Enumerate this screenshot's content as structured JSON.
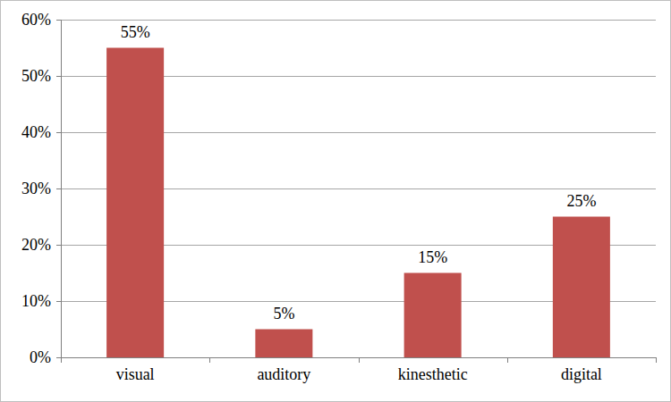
{
  "chart_data": {
    "type": "bar",
    "categories": [
      "visual",
      "auditory",
      "kinesthetic",
      "digital"
    ],
    "values": [
      55,
      5,
      15,
      25
    ],
    "value_labels": [
      "55%",
      "5%",
      "15%",
      "25%"
    ],
    "color": "#c0504d",
    "ylim": [
      0,
      60
    ],
    "yticks": [
      {
        "value": 0,
        "label": "0%"
      },
      {
        "value": 10,
        "label": "10%"
      },
      {
        "value": 20,
        "label": "20%"
      },
      {
        "value": 30,
        "label": "30%"
      },
      {
        "value": 40,
        "label": "40%"
      },
      {
        "value": 50,
        "label": "50%"
      },
      {
        "value": 60,
        "label": "60%"
      }
    ],
    "grid": true,
    "data_labels": true
  }
}
